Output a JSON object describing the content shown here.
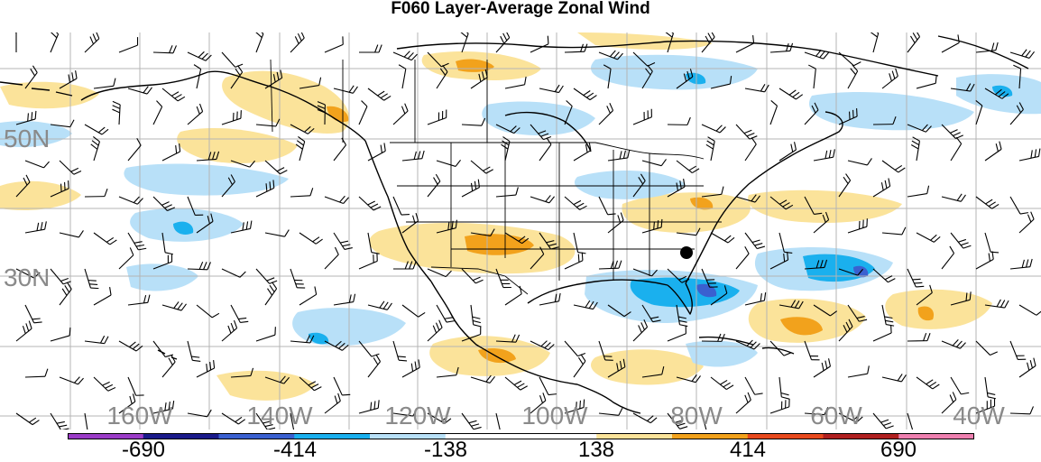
{
  "title": "F060 Layer-Average Zonal Wind",
  "lat_labels": [
    "50N",
    "30N"
  ],
  "lon_labels": [
    "160W",
    "140W",
    "120W",
    "100W",
    "80W",
    "60W",
    "40W"
  ],
  "colorbar": {
    "colors": [
      "#9b3cc8",
      "#1a1a8a",
      "#3a60d0",
      "#1ab0ee",
      "#b8e0f8",
      "#ffffff",
      "#ffffff",
      "#fbe39a",
      "#f2a21c",
      "#e84a1e",
      "#b02020",
      "#ee80b0"
    ],
    "labels": [
      "-690",
      "-414",
      "-138",
      "138",
      "414",
      "690"
    ]
  },
  "marker_label": "",
  "colors": {
    "positive": "#fbe39a",
    "positive_strong": "#f2a21c",
    "negative": "#b8e0f8",
    "negative_strong": "#1ab0ee",
    "negative_max": "#3a60d0",
    "grid": "#b4b4b4",
    "coast": "#000000"
  }
}
